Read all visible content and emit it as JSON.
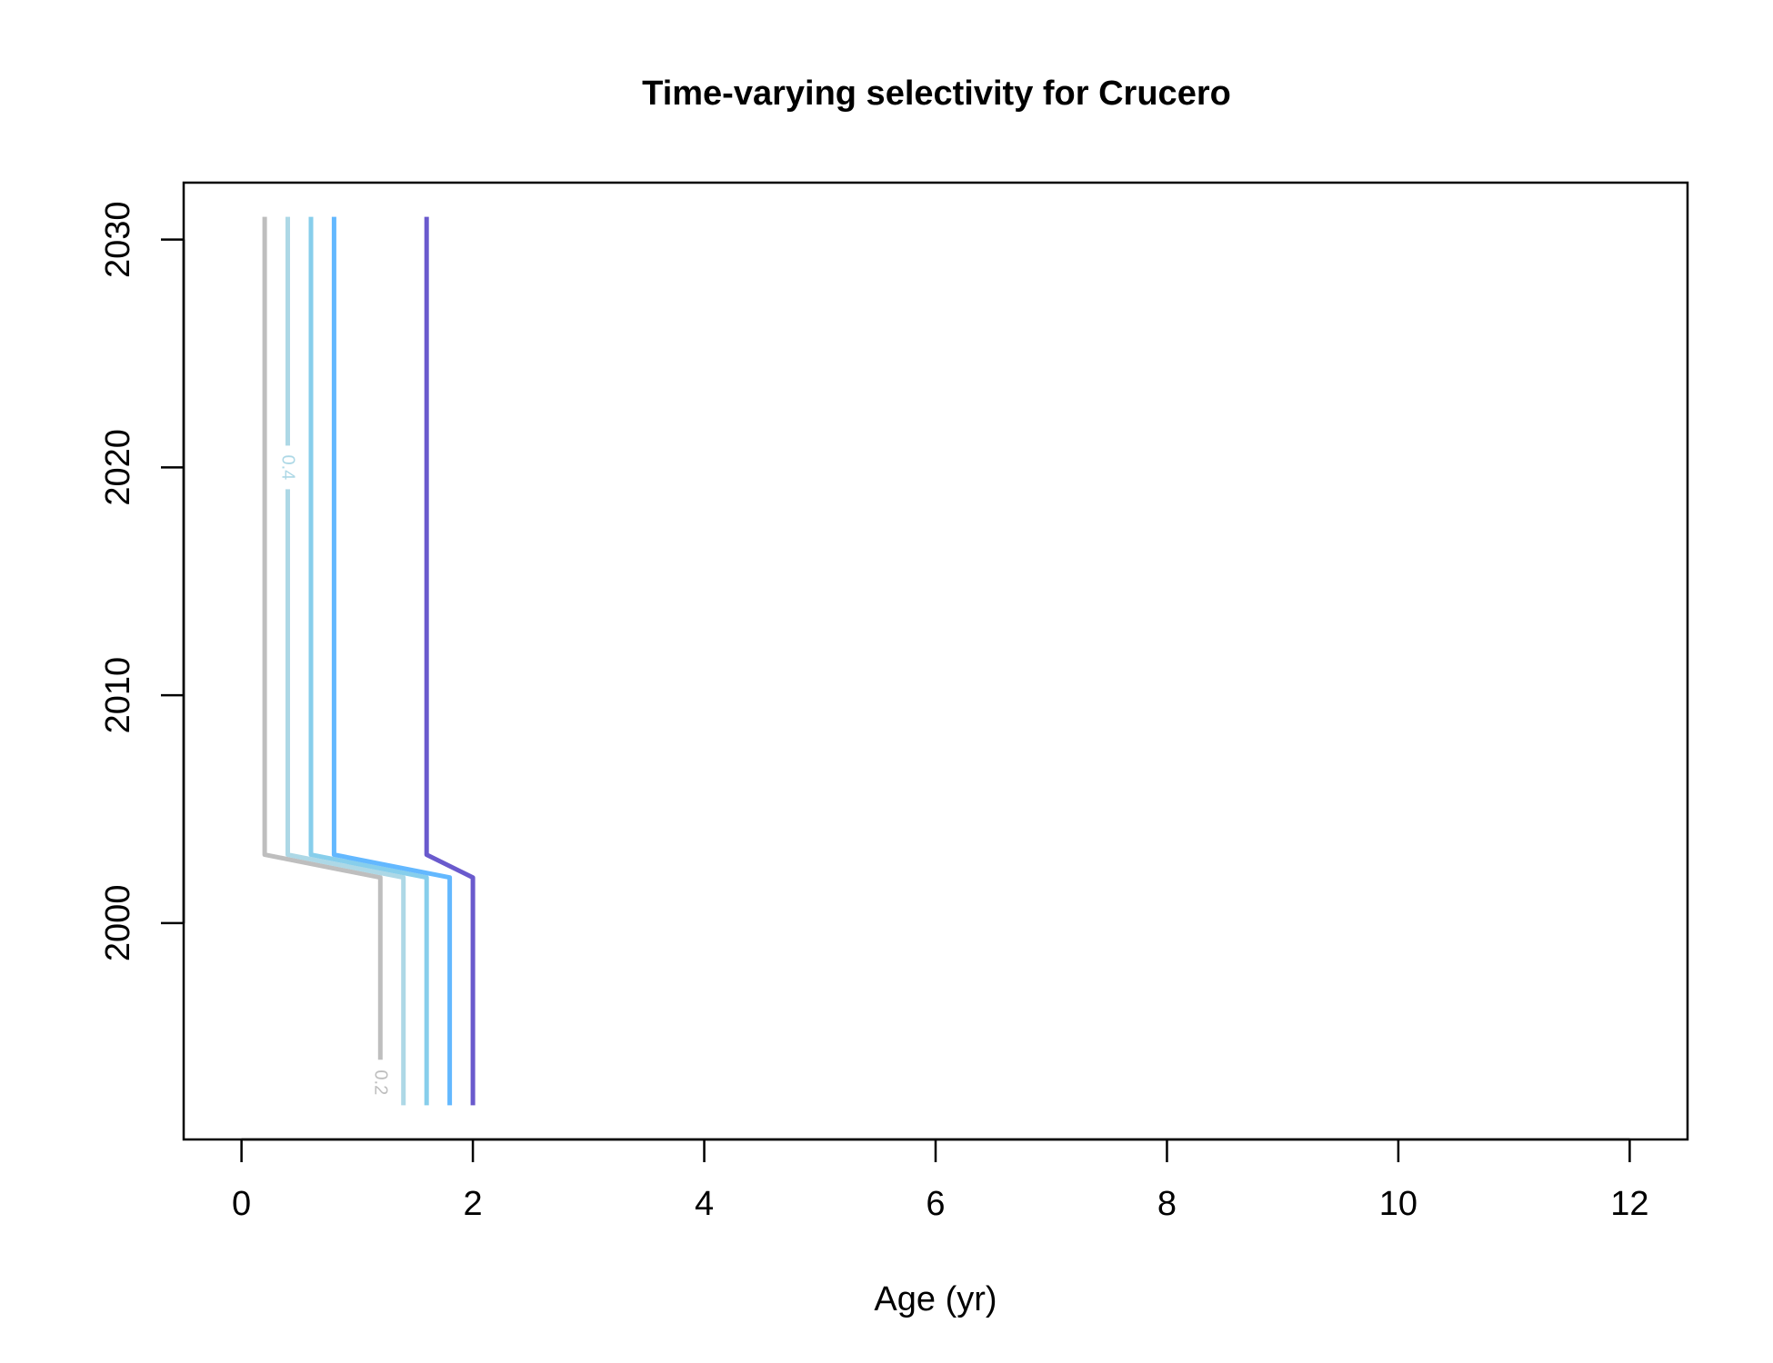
{
  "chart_data": {
    "type": "line",
    "title": "Time-varying selectivity for Crucero",
    "xlabel": "Age (yr)",
    "ylabel": "",
    "xlim": [
      -0.5,
      12.5
    ],
    "ylim": [
      1990.5,
      2032.5
    ],
    "xticks": [
      0,
      2,
      4,
      6,
      8,
      10,
      12
    ],
    "yticks": [
      2000,
      2010,
      2020,
      2030
    ],
    "grid": false,
    "legend": "none",
    "series": [
      {
        "color": "#bebebe",
        "label": "0.2",
        "x": [
          1.2,
          1.2,
          0.2,
          0.2
        ],
        "y": [
          1994,
          2002,
          2003,
          2031
        ]
      },
      {
        "color": "#add8e6",
        "label": "0.4",
        "x": [
          1.4,
          1.4,
          0.4,
          0.4
        ],
        "y": [
          1992,
          2002,
          2003,
          2031
        ]
      },
      {
        "color": "#87ceeb",
        "label": "",
        "x": [
          1.6,
          1.6,
          0.6,
          0.6
        ],
        "y": [
          1992,
          2002,
          2003,
          2031
        ]
      },
      {
        "color": "#63b8ff",
        "label": "",
        "x": [
          1.8,
          1.8,
          0.8,
          0.8
        ],
        "y": [
          1992,
          2002,
          2003,
          2031
        ]
      },
      {
        "color": "#6a5acd",
        "label": "",
        "x": [
          2.0,
          2.0,
          1.6,
          1.6
        ],
        "y": [
          1992,
          2002,
          2003,
          2031
        ]
      }
    ],
    "inline_labels": [
      {
        "text": "0.4",
        "x": 0.4,
        "y": 2020,
        "color": "#add8e6"
      },
      {
        "text": "0.2",
        "x": 1.2,
        "y": 1993,
        "color": "#bebebe"
      }
    ]
  }
}
